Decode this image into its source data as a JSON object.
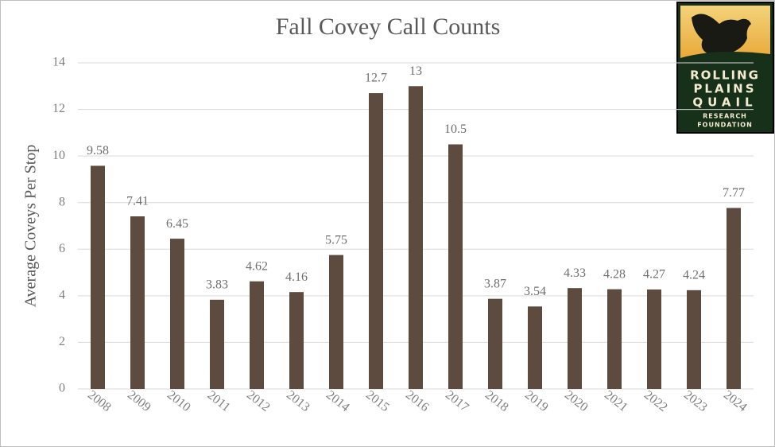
{
  "chart_data": {
    "type": "bar",
    "title": "Fall Covey Call Counts",
    "y_label": "Average Coveys Per Stop",
    "categories": [
      "2008",
      "2009",
      "2010",
      "2011",
      "2012",
      "2013",
      "2014",
      "2015",
      "2016",
      "2017",
      "2018",
      "2019",
      "2020",
      "2021",
      "2022",
      "2023",
      "2024"
    ],
    "values": [
      9.58,
      7.41,
      6.45,
      3.83,
      4.62,
      4.16,
      5.75,
      12.7,
      13,
      10.5,
      3.87,
      3.54,
      4.33,
      4.28,
      4.27,
      4.24,
      7.77
    ],
    "color": "#5c4b3e",
    "ylim": [
      0,
      14
    ],
    "yticks": [
      0,
      2,
      4,
      6,
      8,
      10,
      12,
      14
    ],
    "grid": true
  },
  "logo": {
    "lines": [
      "ROLLING",
      "PLAINS",
      "QUAIL",
      "RESEARCH",
      "FOUNDATION"
    ]
  }
}
